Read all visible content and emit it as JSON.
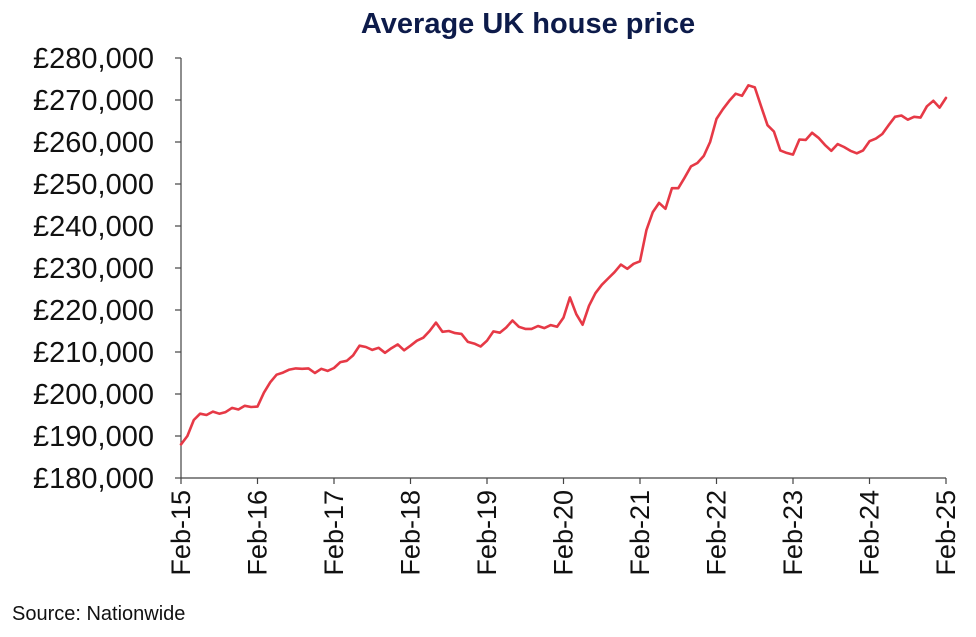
{
  "chart_data": {
    "type": "line",
    "title": "Average UK house price",
    "source": "Source: Nationwide",
    "xlabel": "",
    "ylabel": "",
    "ylim": [
      180000,
      280000
    ],
    "yticks": [
      180000,
      190000,
      200000,
      210000,
      220000,
      230000,
      240000,
      250000,
      260000,
      270000,
      280000
    ],
    "ytick_labels": [
      "£180,000",
      "£190,000",
      "£200,000",
      "£210,000",
      "£220,000",
      "£230,000",
      "£240,000",
      "£250,000",
      "£260,000",
      "£270,000",
      "£280,000"
    ],
    "xticks": [
      "2015-02",
      "2016-02",
      "2017-02",
      "2018-02",
      "2019-02",
      "2020-02",
      "2021-02",
      "2022-02",
      "2023-02",
      "2024-02",
      "2025-02"
    ],
    "xtick_labels": [
      "Feb-15",
      "Feb-16",
      "Feb-17",
      "Feb-18",
      "Feb-19",
      "Feb-20",
      "Feb-21",
      "Feb-22",
      "Feb-23",
      "Feb-24",
      "Feb-25"
    ],
    "grid": false,
    "legend": "none",
    "line_color": "#e63946",
    "series": [
      {
        "x": [
          "2015-02",
          "2015-03",
          "2015-04",
          "2015-05",
          "2015-06",
          "2015-07",
          "2015-08",
          "2015-09",
          "2015-10",
          "2015-11",
          "2015-12",
          "2016-01",
          "2016-02",
          "2016-03",
          "2016-04",
          "2016-05",
          "2016-06",
          "2016-07",
          "2016-08",
          "2016-09",
          "2016-10",
          "2016-11",
          "2016-12",
          "2017-01",
          "2017-02",
          "2017-03",
          "2017-04",
          "2017-05",
          "2017-06",
          "2017-07",
          "2017-08",
          "2017-09",
          "2017-10",
          "2017-11",
          "2017-12",
          "2018-01",
          "2018-02",
          "2018-03",
          "2018-04",
          "2018-05",
          "2018-06",
          "2018-07",
          "2018-08",
          "2018-09",
          "2018-10",
          "2018-11",
          "2018-12",
          "2019-01",
          "2019-02",
          "2019-03",
          "2019-04",
          "2019-05",
          "2019-06",
          "2019-07",
          "2019-08",
          "2019-09",
          "2019-10",
          "2019-11",
          "2019-12",
          "2020-01",
          "2020-02",
          "2020-03",
          "2020-04",
          "2020-05",
          "2020-06",
          "2020-07",
          "2020-08",
          "2020-09",
          "2020-10",
          "2020-11",
          "2020-12",
          "2021-01",
          "2021-02",
          "2021-03",
          "2021-04",
          "2021-05",
          "2021-06",
          "2021-07",
          "2021-08",
          "2021-09",
          "2021-10",
          "2021-11",
          "2021-12",
          "2022-01",
          "2022-02",
          "2022-03",
          "2022-04",
          "2022-05",
          "2022-06",
          "2022-07",
          "2022-08",
          "2022-09",
          "2022-10",
          "2022-11",
          "2022-12",
          "2023-01",
          "2023-02",
          "2023-03",
          "2023-04",
          "2023-05",
          "2023-06",
          "2023-07",
          "2023-08",
          "2023-09",
          "2023-10",
          "2023-11",
          "2023-12",
          "2024-01",
          "2024-02",
          "2024-03",
          "2024-04",
          "2024-05",
          "2024-06",
          "2024-07",
          "2024-08",
          "2024-09",
          "2024-10",
          "2024-11",
          "2024-12",
          "2025-01",
          "2025-02"
        ],
        "values": [
          188000,
          190000,
          193800,
          195300,
          195000,
          195800,
          195300,
          195700,
          196700,
          196300,
          197200,
          196900,
          197000,
          200300,
          202800,
          204600,
          205100,
          205800,
          206100,
          206000,
          206100,
          205000,
          206000,
          205500,
          206200,
          207600,
          207900,
          209200,
          211500,
          211200,
          210500,
          211000,
          209800,
          210900,
          211800,
          210400,
          211500,
          212700,
          213400,
          215000,
          217000,
          214800,
          215000,
          214500,
          214300,
          212400,
          212000,
          211300,
          212700,
          214900,
          214600,
          215800,
          217500,
          216000,
          215500,
          215500,
          216200,
          215700,
          216400,
          216000,
          218200,
          223000,
          219000,
          216500,
          221000,
          224000,
          226000,
          227500,
          229000,
          230800,
          229800,
          231000,
          231600,
          239000,
          243300,
          245500,
          244100,
          249000,
          249000,
          251500,
          254200,
          255000,
          256700,
          260000,
          265500,
          267800,
          269800,
          271500,
          271000,
          273500,
          273000,
          268500,
          264000,
          262500,
          258000,
          257400,
          257000,
          260600,
          260500,
          262200,
          261000,
          259300,
          257900,
          259500,
          258800,
          257900,
          257300,
          258000,
          260200,
          260800,
          261900,
          264000,
          266000,
          266300,
          265300,
          266000,
          265800,
          268500,
          269800,
          268200,
          270500
        ]
      }
    ]
  }
}
